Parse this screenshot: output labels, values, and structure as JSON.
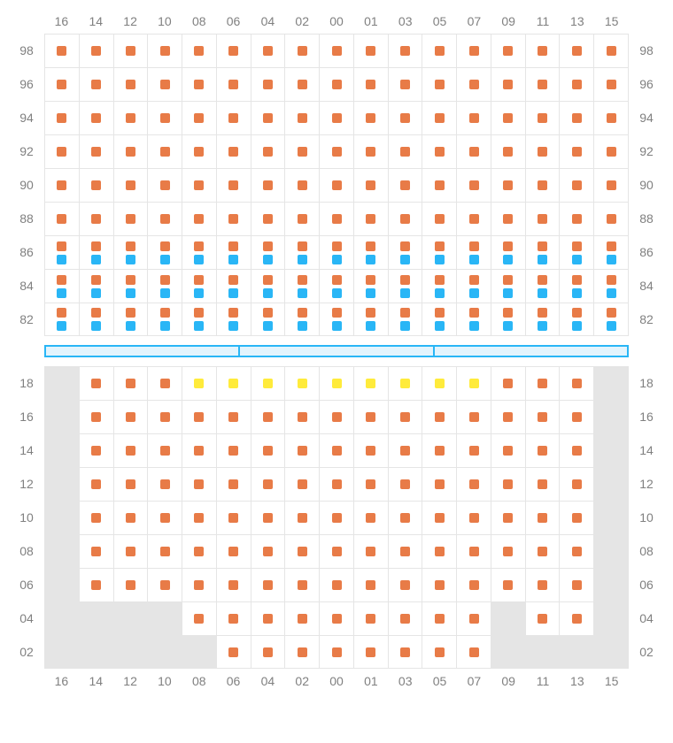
{
  "colors": {
    "orange": "#e87b47",
    "blue": "#29b6f6",
    "yellow": "#ffeb3b",
    "empty": "#e5e5e5",
    "grid": "#e5e5e5",
    "label": "#808080",
    "white": "#ffffff"
  },
  "layout": {
    "cell_size": 38,
    "seat_size": 11,
    "label_width": 40,
    "label_fontsize": 14
  },
  "columns": [
    "16",
    "14",
    "12",
    "10",
    "08",
    "06",
    "04",
    "02",
    "00",
    "01",
    "03",
    "05",
    "07",
    "09",
    "11",
    "13",
    "15"
  ],
  "upper": {
    "row_labels": [
      "98",
      "96",
      "94",
      "92",
      "90",
      "88",
      "86",
      "84",
      "82"
    ],
    "rows": [
      [
        "o",
        "o",
        "o",
        "o",
        "o",
        "o",
        "o",
        "o",
        "o",
        "o",
        "o",
        "o",
        "o",
        "o",
        "o",
        "o",
        "o"
      ],
      [
        "o",
        "o",
        "o",
        "o",
        "o",
        "o",
        "o",
        "o",
        "o",
        "o",
        "o",
        "o",
        "o",
        "o",
        "o",
        "o",
        "o"
      ],
      [
        "o",
        "o",
        "o",
        "o",
        "o",
        "o",
        "o",
        "o",
        "o",
        "o",
        "o",
        "o",
        "o",
        "o",
        "o",
        "o",
        "o"
      ],
      [
        "o",
        "o",
        "o",
        "o",
        "o",
        "o",
        "o",
        "o",
        "o",
        "o",
        "o",
        "o",
        "o",
        "o",
        "o",
        "o",
        "o"
      ],
      [
        "o",
        "o",
        "o",
        "o",
        "o",
        "o",
        "o",
        "o",
        "o",
        "o",
        "o",
        "o",
        "o",
        "o",
        "o",
        "o",
        "o"
      ],
      [
        "o",
        "o",
        "o",
        "o",
        "o",
        "o",
        "o",
        "o",
        "o",
        "o",
        "o",
        "o",
        "o",
        "o",
        "o",
        "o",
        "o"
      ],
      [
        "ob",
        "ob",
        "ob",
        "ob",
        "ob",
        "ob",
        "ob",
        "ob",
        "ob",
        "ob",
        "ob",
        "ob",
        "ob",
        "ob",
        "ob",
        "ob",
        "ob"
      ],
      [
        "ob",
        "ob",
        "ob",
        "ob",
        "ob",
        "ob",
        "ob",
        "ob",
        "ob",
        "ob",
        "ob",
        "ob",
        "ob",
        "ob",
        "ob",
        "ob",
        "ob"
      ],
      [
        "ob",
        "ob",
        "ob",
        "ob",
        "ob",
        "ob",
        "ob",
        "ob",
        "ob",
        "ob",
        "ob",
        "ob",
        "ob",
        "ob",
        "ob",
        "ob",
        "ob"
      ]
    ]
  },
  "divider_segments": 3,
  "lower": {
    "row_labels": [
      "18",
      "16",
      "14",
      "12",
      "10",
      "08",
      "06",
      "04",
      "02"
    ],
    "rows": [
      [
        "e",
        "o",
        "o",
        "o",
        "y",
        "y",
        "y",
        "y",
        "y",
        "y",
        "y",
        "y",
        "y",
        "o",
        "o",
        "o",
        "e"
      ],
      [
        "e",
        "o",
        "o",
        "o",
        "o",
        "o",
        "o",
        "o",
        "o",
        "o",
        "o",
        "o",
        "o",
        "o",
        "o",
        "o",
        "e"
      ],
      [
        "e",
        "o",
        "o",
        "o",
        "o",
        "o",
        "o",
        "o",
        "o",
        "o",
        "o",
        "o",
        "o",
        "o",
        "o",
        "o",
        "e"
      ],
      [
        "e",
        "o",
        "o",
        "o",
        "o",
        "o",
        "o",
        "o",
        "o",
        "o",
        "o",
        "o",
        "o",
        "o",
        "o",
        "o",
        "e"
      ],
      [
        "e",
        "o",
        "o",
        "o",
        "o",
        "o",
        "o",
        "o",
        "o",
        "o",
        "o",
        "o",
        "o",
        "o",
        "o",
        "o",
        "e"
      ],
      [
        "e",
        "o",
        "o",
        "o",
        "o",
        "o",
        "o",
        "o",
        "o",
        "o",
        "o",
        "o",
        "o",
        "o",
        "o",
        "o",
        "e"
      ],
      [
        "e",
        "o",
        "o",
        "o",
        "o",
        "o",
        "o",
        "o",
        "o",
        "o",
        "o",
        "o",
        "o",
        "o",
        "o",
        "o",
        "e"
      ],
      [
        "e",
        "e",
        "e",
        "e",
        "o",
        "o",
        "o",
        "o",
        "o",
        "o",
        "o",
        "o",
        "o",
        "e",
        "o",
        "o",
        "e"
      ],
      [
        "e",
        "e",
        "e",
        "e",
        "e",
        "o",
        "o",
        "o",
        "o",
        "o",
        "o",
        "o",
        "o",
        "e",
        "e",
        "e",
        "e"
      ]
    ]
  }
}
